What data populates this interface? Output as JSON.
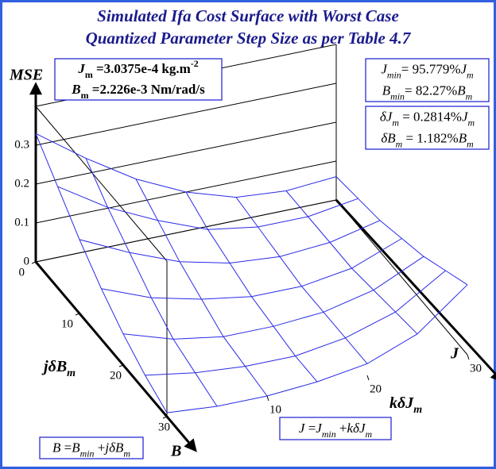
{
  "chart_data": {
    "type": "surface",
    "title": [
      "Simulated Ifa Cost Surface with Worst Case",
      "Quantized Parameter Step Size as per Table 4.7"
    ],
    "z_label": "MSE",
    "j_label": [
      {
        "t": "j"
      },
      {
        "t": "δ"
      },
      {
        "t": "B"
      },
      {
        "t": "m",
        "s": "sub"
      }
    ],
    "k_label": [
      {
        "t": "k"
      },
      {
        "t": "δ"
      },
      {
        "t": "J"
      },
      {
        "t": "m",
        "s": "sub"
      }
    ],
    "j_arrow_label": "B",
    "k_arrow_label": "J",
    "k": [
      0,
      5,
      10,
      15,
      20,
      25,
      30
    ],
    "j": [
      0,
      5,
      10,
      15,
      20,
      25,
      30
    ],
    "z": [
      [
        0.33,
        0.24,
        0.16,
        0.1,
        0.06,
        0.05,
        0.06
      ],
      [
        0.26,
        0.18,
        0.12,
        0.07,
        0.05,
        0.05,
        0.07
      ],
      [
        0.19,
        0.13,
        0.08,
        0.05,
        0.04,
        0.05,
        0.08
      ],
      [
        0.13,
        0.08,
        0.05,
        0.03,
        0.03,
        0.05,
        0.1
      ],
      [
        0.08,
        0.04,
        0.02,
        0.02,
        0.03,
        0.06,
        0.12
      ],
      [
        0.04,
        0.02,
        0.01,
        0.01,
        0.03,
        0.07,
        0.15
      ],
      [
        0.01,
        0.0,
        0.0,
        0.01,
        0.03,
        0.08,
        0.18
      ]
    ],
    "color": "#2a2ae8",
    "zlim": [
      0,
      0.4
    ],
    "zticks": [
      0,
      0.1,
      0.2,
      0.3
    ],
    "jlim": [
      0,
      30
    ],
    "jticks": [
      0,
      10,
      20,
      30
    ],
    "klim": [
      0,
      30
    ],
    "kticks": [
      10,
      20,
      30
    ],
    "annotations": [
      [
        [
          {
            "t": "J"
          },
          {
            "t": "m",
            "s": "sub"
          },
          {
            "t": " =3.0375e-4 kg.m"
          },
          {
            "t": "-2",
            "s": "sup"
          }
        ],
        [
          {
            "t": "B"
          },
          {
            "t": "m",
            "s": "sub"
          },
          {
            "t": " =2.226e-3 Nm/rad/s"
          }
        ]
      ],
      [
        [
          {
            "t": "J"
          },
          {
            "t": "min",
            "s": "sub"
          },
          {
            "t": "= 95.779%"
          },
          {
            "t": "J"
          },
          {
            "t": "m",
            "s": "sub"
          }
        ],
        [
          {
            "t": "B"
          },
          {
            "t": "min",
            "s": "sub"
          },
          {
            "t": "= 82.27%"
          },
          {
            "t": "B"
          },
          {
            "t": "m",
            "s": "sub"
          }
        ]
      ],
      [
        [
          {
            "t": "δJ"
          },
          {
            "t": "m",
            "s": "sub"
          },
          {
            "t": " = 0.2814%"
          },
          {
            "t": "J"
          },
          {
            "t": "m",
            "s": "sub"
          }
        ],
        [
          {
            "t": "δB"
          },
          {
            "t": "m",
            "s": "sub"
          },
          {
            "t": " = 1.182%"
          },
          {
            "t": "B"
          },
          {
            "t": "m",
            "s": "sub"
          }
        ]
      ],
      [
        [
          {
            "t": "B"
          },
          {
            "t": " ="
          },
          {
            "t": "B"
          },
          {
            "t": "min",
            "s": "sub"
          },
          {
            "t": " +"
          },
          {
            "t": "jδB"
          },
          {
            "t": "m",
            "s": "sub"
          }
        ]
      ],
      [
        [
          {
            "t": "J"
          },
          {
            "t": " ="
          },
          {
            "t": "J"
          },
          {
            "t": "min",
            "s": "sub"
          },
          {
            "t": " +"
          },
          {
            "t": "kδJ"
          },
          {
            "t": "m",
            "s": "sub"
          }
        ]
      ]
    ]
  }
}
